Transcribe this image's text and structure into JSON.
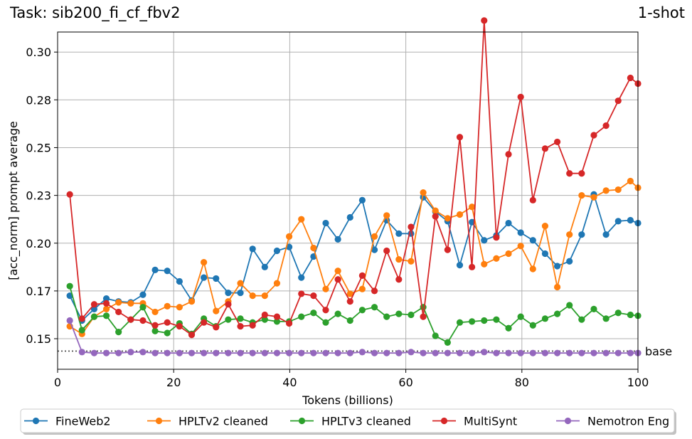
{
  "header": {
    "task_title": "Task: sib200_fi_cf_fbv2",
    "shot_label": "1-shot"
  },
  "chart_data": {
    "type": "line",
    "title": "Task: sib200_fi_cf_fbv2",
    "xlabel": "Tokens (billions)",
    "ylabel": "[acc_norm] prompt average",
    "xlim": [
      0,
      100
    ],
    "ylim": [
      0.134,
      0.3105
    ],
    "xticks": [
      0,
      20,
      40,
      60,
      80,
      100
    ],
    "yticks": [
      0.15,
      0.175,
      0.2,
      0.225,
      0.25,
      0.275,
      0.3
    ],
    "ytick_labels": [
      "0.15",
      "0.17",
      "0.20",
      "0.23",
      "0.25",
      "0.28",
      "0.30"
    ],
    "grid": true,
    "legend_position": "bottom",
    "baseline": {
      "label": "base",
      "value": 0.1435,
      "color": "#444444"
    },
    "x": [
      2.1,
      4.2,
      6.3,
      8.4,
      10.5,
      12.6,
      14.7,
      16.8,
      18.9,
      21.0,
      23.1,
      25.2,
      27.3,
      29.4,
      31.5,
      33.6,
      35.7,
      37.8,
      39.9,
      42.0,
      44.1,
      46.2,
      48.3,
      50.4,
      52.5,
      54.6,
      56.7,
      58.8,
      60.9,
      63.0,
      65.1,
      67.2,
      69.3,
      71.4,
      73.5,
      75.6,
      77.7,
      79.8,
      81.9,
      84.0,
      86.1,
      88.2,
      90.3,
      92.4,
      94.5,
      96.6,
      98.7,
      100.0
    ],
    "series": [
      {
        "name": "FineWeb2",
        "color": "#1f77b4",
        "values": [
          0.1725,
          0.1595,
          0.1655,
          0.171,
          0.1695,
          0.169,
          0.173,
          0.186,
          0.1855,
          0.18,
          0.17,
          0.182,
          0.1815,
          0.174,
          0.174,
          0.197,
          0.1875,
          0.196,
          0.198,
          0.182,
          0.193,
          0.2105,
          0.202,
          0.2135,
          0.2225,
          0.1965,
          0.212,
          0.205,
          0.205,
          0.224,
          0.2165,
          0.2115,
          0.1885,
          0.211,
          0.2015,
          0.204,
          0.2105,
          0.2055,
          0.2015,
          0.1945,
          0.188,
          0.1905,
          0.2045,
          0.2255,
          0.2045,
          0.2115,
          0.212,
          0.2105
        ]
      },
      {
        "name": "HPLTv2 cleaned",
        "color": "#ff7f0e",
        "values": [
          0.1565,
          0.1525,
          0.1615,
          0.1655,
          0.169,
          0.1685,
          0.1685,
          0.164,
          0.167,
          0.1665,
          0.1695,
          0.19,
          0.1645,
          0.1695,
          0.179,
          0.1725,
          0.1725,
          0.179,
          0.2035,
          0.2125,
          0.1975,
          0.176,
          0.1855,
          0.1735,
          0.176,
          0.2035,
          0.2145,
          0.1915,
          0.1905,
          0.2265,
          0.217,
          0.213,
          0.215,
          0.219,
          0.189,
          0.192,
          0.1945,
          0.1985,
          0.1865,
          0.209,
          0.177,
          0.2045,
          0.225,
          0.224,
          0.2275,
          0.228,
          0.2325,
          0.229
        ]
      },
      {
        "name": "HPLTv3 cleaned",
        "color": "#2ca02c",
        "values": [
          0.1775,
          0.1545,
          0.1615,
          0.162,
          0.1535,
          0.16,
          0.1665,
          0.154,
          0.153,
          0.158,
          0.1525,
          0.1605,
          0.1565,
          0.16,
          0.1605,
          0.1585,
          0.16,
          0.159,
          0.159,
          0.1615,
          0.1635,
          0.1585,
          0.163,
          0.1595,
          0.165,
          0.1665,
          0.1615,
          0.163,
          0.1625,
          0.1665,
          0.1515,
          0.148,
          0.1585,
          0.159,
          0.1595,
          0.16,
          0.1555,
          0.1615,
          0.157,
          0.1605,
          0.163,
          0.1675,
          0.16,
          0.1655,
          0.1605,
          0.1635,
          0.1625,
          0.162
        ]
      },
      {
        "name": "MultiSynt",
        "color": "#d62728",
        "values": [
          0.2255,
          0.1605,
          0.168,
          0.1685,
          0.164,
          0.16,
          0.1595,
          0.157,
          0.1585,
          0.1565,
          0.152,
          0.1585,
          0.156,
          0.168,
          0.1565,
          0.157,
          0.1625,
          0.1615,
          0.158,
          0.1735,
          0.1725,
          0.165,
          0.181,
          0.1695,
          0.183,
          0.175,
          0.196,
          0.181,
          0.2085,
          0.1615,
          0.214,
          0.1965,
          0.2555,
          0.1875,
          0.3165,
          0.203,
          0.2465,
          0.2765,
          0.2225,
          0.2495,
          0.253,
          0.2365,
          0.2365,
          0.2565,
          0.2615,
          0.2745,
          0.2865,
          0.2835
        ]
      },
      {
        "name": "Nemotron Eng",
        "color": "#9467bd",
        "values": [
          0.1595,
          0.143,
          0.1425,
          0.1425,
          0.1425,
          0.143,
          0.143,
          0.1425,
          0.1425,
          0.1425,
          0.1425,
          0.1425,
          0.1425,
          0.1425,
          0.1425,
          0.1425,
          0.1425,
          0.1425,
          0.1425,
          0.1425,
          0.1425,
          0.1425,
          0.1425,
          0.1425,
          0.143,
          0.1425,
          0.1425,
          0.1425,
          0.143,
          0.1425,
          0.1425,
          0.1425,
          0.1425,
          0.1425,
          0.143,
          0.1425,
          0.1425,
          0.1425,
          0.1425,
          0.1425,
          0.1425,
          0.1425,
          0.1425,
          0.1425,
          0.1425,
          0.1425,
          0.1425,
          0.1425
        ]
      }
    ]
  }
}
